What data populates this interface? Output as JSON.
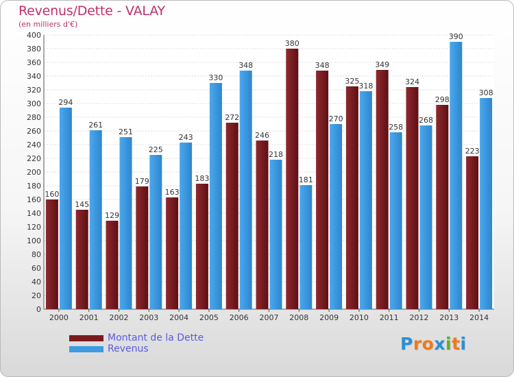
{
  "header": {
    "title": "Revenus/Dette - VALAY",
    "subtitle": "(en milliers d'€)"
  },
  "legend": {
    "items": [
      {
        "label": "Montant de la Dette",
        "color": "#7a1a1f"
      },
      {
        "label": "Revenus",
        "color": "#3d9be4"
      }
    ]
  },
  "logo": {
    "letters": [
      "P",
      "r",
      "o",
      "x",
      "i",
      "t",
      "i"
    ],
    "colors": [
      "#2a8fd6",
      "#f07a1a",
      "#f07a1a",
      "#2a8fd6",
      "#5fae2e",
      "#f07a1a",
      "#2a8fd6"
    ]
  },
  "chart_data": {
    "type": "bar",
    "categories": [
      "2000",
      "2001",
      "2002",
      "2003",
      "2004",
      "2005",
      "2006",
      "2007",
      "2008",
      "2009",
      "2010",
      "2011",
      "2012",
      "2013",
      "2014"
    ],
    "series": [
      {
        "name": "Montant de la Dette",
        "color": "#7a1a1f",
        "values": [
          160,
          145,
          129,
          179,
          163,
          183,
          272,
          246,
          380,
          348,
          325,
          349,
          324,
          298,
          223
        ]
      },
      {
        "name": "Revenus",
        "color": "#3d9be4",
        "values": [
          294,
          261,
          251,
          225,
          243,
          330,
          348,
          218,
          181,
          270,
          318,
          258,
          268,
          390,
          308
        ]
      }
    ],
    "ylim": [
      0,
      400
    ],
    "ytick_step": 20,
    "grid": true,
    "xlabel": "",
    "ylabel": ""
  }
}
